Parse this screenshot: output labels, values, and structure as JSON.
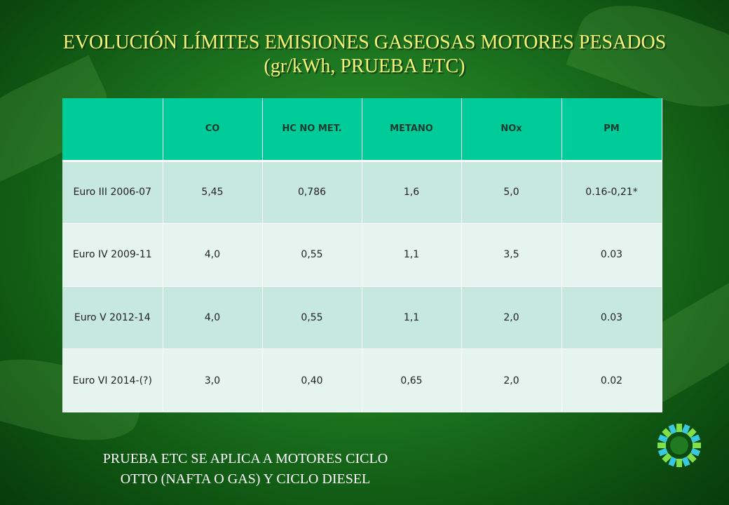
{
  "title": {
    "line1": "EVOLUCIÓN LÍMITES EMISIONES GASEOSAS  MOTORES PESADOS",
    "line2": "(gr/kWh, PRUEBA ETC)"
  },
  "table": {
    "headers": [
      "",
      "CO",
      "HC NO MET.",
      "METANO",
      "NOx",
      "PM"
    ],
    "rows": [
      [
        "Euro III 2006-07",
        "5,45",
        "0,786",
        "1,6",
        "5,0",
        "0.16-0,21*"
      ],
      [
        "Euro IV 2009-11",
        "4,0",
        "0,55",
        "1,1",
        "3,5",
        "0.03"
      ],
      [
        "Euro V 2012-14",
        "4,0",
        "0,55",
        "1,1",
        "2,0",
        "0.03"
      ],
      [
        "Euro VI 2014-(?)",
        "3,0",
        "0,40",
        "0,65",
        "2,0",
        "0.02"
      ]
    ]
  },
  "note": {
    "line1": "PRUEBA  ETC  SE APLICA A MOTORES CICLO",
    "line2": "OTTO (NAFTA O GAS) Y CICLO DIESEL"
  },
  "logo_icon": "gear-ring-logo-icon",
  "colors": {
    "background": "#1f7a22",
    "title": "#f2f27a",
    "header_row": "#00cc99",
    "row_dark": "#c7e8de",
    "row_light": "#e6f4ef"
  }
}
